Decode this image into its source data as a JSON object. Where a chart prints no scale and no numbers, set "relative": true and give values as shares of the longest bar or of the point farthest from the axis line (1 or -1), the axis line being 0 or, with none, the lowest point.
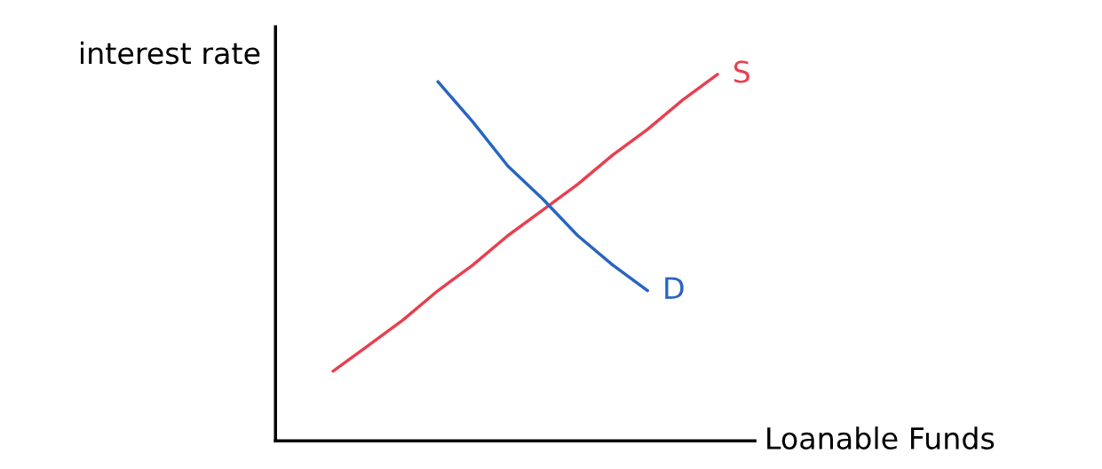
{
  "chart_data": {
    "type": "line",
    "relative": true,
    "xlabel": "Loanable Funds",
    "ylabel": "interest rate",
    "categories": [
      null,
      null,
      null,
      null,
      null,
      null,
      null,
      null,
      null,
      null,
      null,
      null
    ],
    "series": [
      {
        "name": "S",
        "color": "#e8404f",
        "values": [
          0.19,
          0.26,
          0.33,
          0.41,
          0.48,
          0.56,
          0.63,
          0.7,
          0.78,
          0.85,
          0.93,
          1.0
        ]
      },
      {
        "name": "D",
        "color": "#2a64c0",
        "values": [
          null,
          null,
          null,
          0.98,
          0.87,
          0.75,
          0.66,
          0.56,
          0.48,
          0.41,
          null,
          null
        ]
      }
    ]
  }
}
